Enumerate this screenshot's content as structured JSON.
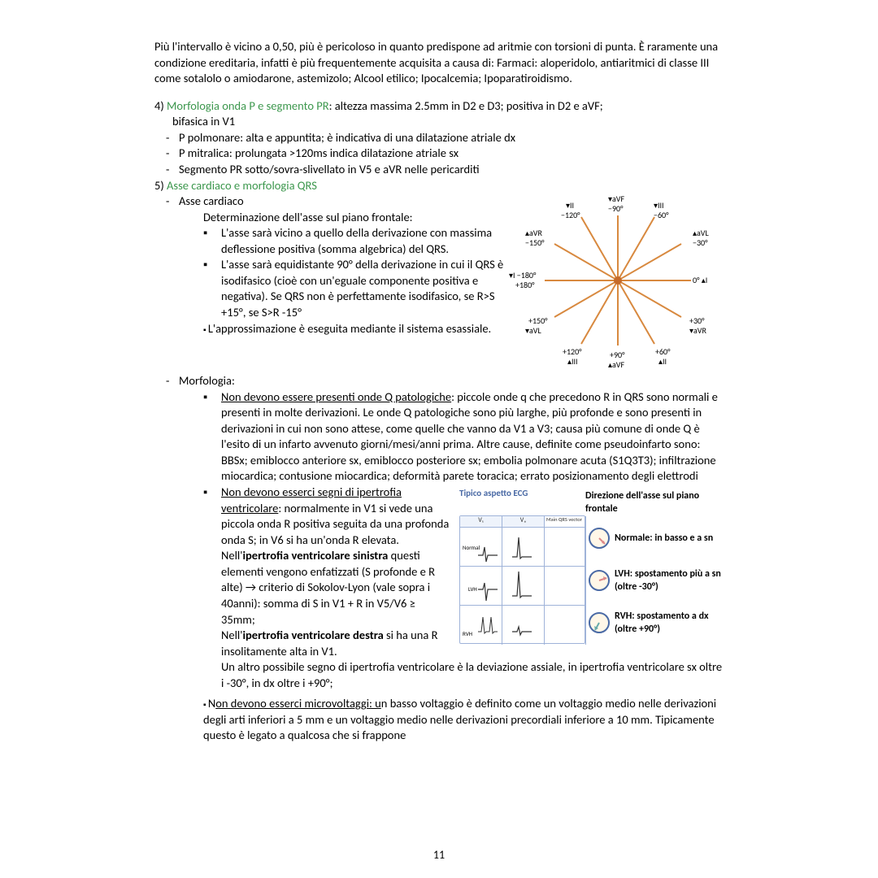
{
  "intro": "Più l'intervallo è vicino a 0,50, più è pericoloso in quanto predispone ad aritmie con torsioni di punta. È raramente una condizione ereditaria, infatti è più frequentemente acquisita a causa di: Farmaci: aloperidolo, antiaritmici di classe III come sotalolo o amiodarone, astemizolo; Alcool etilico; Ipocalcemia; Ipoparatiroidismo.",
  "sec4": {
    "num": "4)",
    "label": "Morfologia onda P e segmento PR",
    "tail": ": altezza massima 2.5mm in D2 e D3; positiva in D2 e aVF;",
    "line2": "bifasica in V1",
    "items": [
      "P polmonare: alta e appuntita; è indicativa di una dilatazione atriale dx",
      "P mitralica: prolungata >120ms indica dilatazione atriale sx",
      "Segmento PR sotto/sovra-slivellato in V5 e aVR nelle pericarditi"
    ]
  },
  "sec5": {
    "num": "5)",
    "label": "Asse cardiaco e morfologia QRS",
    "asse_hdr": "Asse cardiaco",
    "det": "Determinazione dell'asse sul piano frontale:",
    "bul1": "L'asse sarà vicino a quello della derivazione con massima deflessione positiva (somma algebrica) del QRS.",
    "bul2": "L'asse sarà equidistante 90° della derivazione in cui il QRS è isodifasico (cioè con un'eguale componente positiva e negativa). Se QRS non è perfettamente isodifasico, se R>S +15°, se S>R -15°",
    "bul3": "L'approssimazione è eseguita mediante il sistema esassiale.",
    "morf_hdr": "Morfologia:",
    "morf1_u": "Non devono essere presenti onde Q patologiche",
    "morf1_t": ": piccole onde q che precedono R in QRS sono normali e presenti in molte derivazioni. Le onde Q patologiche sono più larghe, più profonde e sono presenti in derivazioni in cui non sono attese, come quelle che vanno da V1 a V3; causa più comune di onde Q è l'esito di un infarto avvenuto giorni/mesi/anni prima. Altre cause, definite come pseudoinfarto sono: BBSx; emiblocco anteriore sx, emiblocco posteriore sx; embolia polmonare acuta (S1Q3T3); infiltrazione miocardica; contusione miocardica; deformità parete toracica; errato posizionamento degli elettrodi",
    "morf2_u": "Non devono esserci segni di ipertrofia ventricolare",
    "morf2_a": ": normalmente in V1 si vede una piccola onda R positiva seguita da una profonda onda S; in V6 si ha un'onda R elevata. Nell'",
    "morf2_b1": "ipertrofia ventricolare sinistra",
    "morf2_c": " questi elementi vengono enfatizzati (S profonde e R alte) → criterio di Sokolov-Lyon (vale sopra i 40anni): somma di S in V1 + R in V5/V6 ≥ 35mm;",
    "morf2_d": "Nell'",
    "morf2_b2": "ipertrofia ventricolare destra",
    "morf2_e": " si ha una R insolitamente alta in V1.",
    "morf2_f": "Un altro possibile segno di ipertrofia ventricolare è la deviazione assiale, in ipertrofia ventricolare sx oltre i -30°, in dx oltre i +90°;",
    "morf3_u": "Non devono esserci microvoltaggi: u",
    "morf3_t": "n basso voltaggio è definito come un voltaggio medio nelle derivazioni degli arti inferiori a 5 mm e un voltaggio medio nelle derivazioni precordiali inferiore a 10 mm. Tipicamente questo è legato a qualcosa che si frappone"
  },
  "hex": {
    "labels": {
      "aVF_top": "▾aVF",
      "n90": "−90°",
      "II_t": "▾II",
      "n120": "−120°",
      "III_t": "▾III",
      "n60": "−60°",
      "aVR_u": "▴aVR",
      "n150": "−150°",
      "aVL_u": "▴aVL",
      "n30": "−30°",
      "I_l": "▾I −180°",
      "p180": "+180°",
      "p0": "0°  ▴I",
      "p150": "+150°",
      "aVL_b": "▾aVL",
      "p30": "+30°",
      "aVR_b": "▾aVR",
      "p120": "+120°",
      "III_b": "▴III",
      "p90": "+90°",
      "aVF_b": "▴aVF",
      "p60": "+60°",
      "II_b": "▴II"
    },
    "ray_color": "#d8893f",
    "center_color": "#c56a2a"
  },
  "ecg": {
    "tipico": "Tipico aspetto ECG",
    "col_v1": "V₁",
    "col_v6": "V₆",
    "main_vec": "Main QRS vector",
    "normal": "Normal",
    "lvh": "LVH",
    "rvh": "RVH",
    "dir_title": "Direzione dell'asse sul piano frontale",
    "row1": "Normale: in basso e a sn",
    "row2": "LVH: spostamento più a sn (oltre -30°)",
    "row3": "RVH: spostamento a dx (oltre +90°)"
  },
  "page_num": "11",
  "colors": {
    "text": "#000000",
    "green": "#3c974d",
    "blue": "#4a6aa5",
    "hex_ray": "#d8893f"
  }
}
